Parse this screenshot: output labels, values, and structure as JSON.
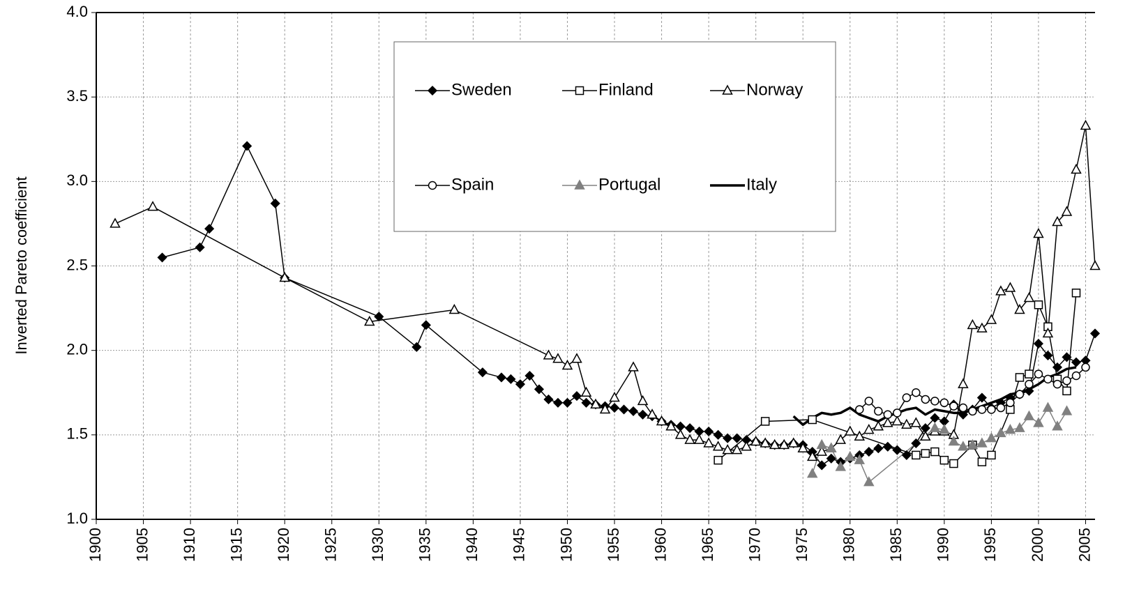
{
  "chart_data": {
    "type": "line",
    "y_label": "Inverted Pareto coefficient",
    "xlim": [
      1900,
      2006
    ],
    "xticks": [
      1900,
      1905,
      1910,
      1915,
      1920,
      1925,
      1930,
      1935,
      1940,
      1945,
      1950,
      1955,
      1960,
      1965,
      1970,
      1975,
      1980,
      1985,
      1990,
      1995,
      2000,
      2005
    ],
    "ylim": [
      1,
      4
    ],
    "yticks": [
      {
        "value": 1,
        "label": "1.0"
      },
      1.5,
      {
        "value": 2,
        "label": "2.0"
      },
      2.5,
      {
        "value": 3,
        "label": "3.0"
      },
      3.5,
      {
        "value": 4,
        "label": "4.0"
      }
    ],
    "grid": true,
    "series": [
      {
        "name": "Sweden",
        "color": "#000000",
        "marker": "diamond",
        "marker_fill": "#000000",
        "line_width": 1.5,
        "x": [
          1907,
          1911,
          1912,
          1916,
          1919,
          1920,
          1930,
          1934,
          1935,
          1941,
          1943,
          1944,
          1945,
          1946,
          1947,
          1948,
          1949,
          1950,
          1951,
          1952,
          1953,
          1954,
          1955,
          1956,
          1957,
          1958,
          1959,
          1960,
          1961,
          1962,
          1963,
          1964,
          1965,
          1966,
          1967,
          1968,
          1969,
          1970,
          1971,
          1972,
          1973,
          1974,
          1975,
          1976,
          1977,
          1978,
          1979,
          1980,
          1981,
          1982,
          1983,
          1984,
          1985,
          1986,
          1987,
          1988,
          1989,
          1990,
          1991,
          1992,
          1993,
          1994,
          1995,
          1996,
          1997,
          1998,
          1999,
          2000,
          2001,
          2002,
          2003,
          2004,
          2005,
          2006
        ],
        "values": [
          2.55,
          2.61,
          2.72,
          3.21,
          2.87,
          2.43,
          2.2,
          2.02,
          2.15,
          1.87,
          1.84,
          1.83,
          1.8,
          1.85,
          1.77,
          1.71,
          1.69,
          1.69,
          1.73,
          1.69,
          1.68,
          1.67,
          1.66,
          1.65,
          1.64,
          1.62,
          1.61,
          1.58,
          1.56,
          1.55,
          1.54,
          1.52,
          1.52,
          1.5,
          1.48,
          1.48,
          1.47,
          1.46,
          1.45,
          1.44,
          1.44,
          1.45,
          1.44,
          1.4,
          1.32,
          1.36,
          1.34,
          1.36,
          1.38,
          1.4,
          1.42,
          1.43,
          1.41,
          1.38,
          1.45,
          1.54,
          1.6,
          1.58,
          1.68,
          1.62,
          1.65,
          1.72,
          1.66,
          1.69,
          1.72,
          1.74,
          1.76,
          2.04,
          1.97,
          1.9,
          1.96,
          1.93,
          1.94,
          2.1
        ]
      },
      {
        "name": "Finland",
        "color": "#000000",
        "marker": "square",
        "marker_fill": "#ffffff",
        "line_width": 1.5,
        "x": [
          1966,
          1971,
          1976,
          1987,
          1988,
          1989,
          1990,
          1991,
          1993,
          1994,
          1995,
          1997,
          1998,
          1999,
          2000,
          2001,
          2002,
          2003,
          2004
        ],
        "values": [
          1.35,
          1.58,
          1.59,
          1.38,
          1.39,
          1.4,
          1.35,
          1.33,
          1.44,
          1.34,
          1.38,
          1.65,
          1.84,
          1.86,
          2.27,
          2.14,
          1.83,
          1.76,
          2.34
        ]
      },
      {
        "name": "Norway",
        "color": "#000000",
        "marker": "triangle",
        "marker_fill": "#ffffff",
        "line_width": 1.5,
        "x": [
          1902,
          1906,
          1920,
          1929,
          1938,
          1948,
          1949,
          1950,
          1951,
          1952,
          1953,
          1954,
          1955,
          1957,
          1958,
          1959,
          1960,
          1961,
          1962,
          1963,
          1964,
          1965,
          1966,
          1967,
          1968,
          1969,
          1970,
          1971,
          1972,
          1973,
          1974,
          1975,
          1976,
          1977,
          1978,
          1979,
          1980,
          1981,
          1982,
          1983,
          1984,
          1985,
          1986,
          1987,
          1988,
          1989,
          1990,
          1991,
          1992,
          1993,
          1994,
          1995,
          1996,
          1997,
          1998,
          1999,
          2000,
          2001,
          2002,
          2003,
          2004,
          2005,
          2006
        ],
        "values": [
          2.75,
          2.85,
          2.43,
          2.17,
          2.24,
          1.97,
          1.95,
          1.91,
          1.95,
          1.75,
          1.68,
          1.65,
          1.72,
          1.9,
          1.7,
          1.62,
          1.58,
          1.55,
          1.5,
          1.47,
          1.47,
          1.45,
          1.43,
          1.41,
          1.41,
          1.43,
          1.46,
          1.45,
          1.44,
          1.44,
          1.45,
          1.42,
          1.37,
          1.4,
          1.42,
          1.47,
          1.52,
          1.49,
          1.53,
          1.55,
          1.57,
          1.58,
          1.56,
          1.57,
          1.49,
          1.52,
          1.52,
          1.5,
          1.8,
          2.15,
          2.13,
          2.18,
          2.35,
          2.37,
          2.24,
          2.31,
          2.69,
          2.1,
          2.76,
          2.82,
          3.07,
          3.33,
          2.5
        ]
      },
      {
        "name": "Spain",
        "color": "#000000",
        "marker": "circle",
        "marker_fill": "#ffffff",
        "line_width": 1.5,
        "x": [
          1981,
          1982,
          1983,
          1984,
          1985,
          1986,
          1987,
          1988,
          1989,
          1990,
          1991,
          1992,
          1993,
          1994,
          1995,
          1996,
          1997,
          1998,
          1999,
          2000,
          2001,
          2002,
          2003,
          2004,
          2005
        ],
        "values": [
          1.65,
          1.7,
          1.64,
          1.62,
          1.63,
          1.72,
          1.75,
          1.71,
          1.7,
          1.69,
          1.67,
          1.66,
          1.64,
          1.65,
          1.65,
          1.66,
          1.69,
          1.74,
          1.8,
          1.86,
          1.83,
          1.8,
          1.82,
          1.85,
          1.9
        ]
      },
      {
        "name": "Portugal",
        "color": "#808080",
        "marker": "triangle",
        "marker_fill": "#808080",
        "line_width": 1.5,
        "x": [
          1976,
          1977,
          1978,
          1979,
          1980,
          1981,
          1982,
          1989,
          1990,
          1991,
          1992,
          1993,
          1994,
          1995,
          1996,
          1997,
          1998,
          1999,
          2000,
          2001,
          2002,
          2003
        ],
        "values": [
          1.27,
          1.44,
          1.42,
          1.31,
          1.37,
          1.35,
          1.22,
          1.54,
          1.53,
          1.46,
          1.43,
          1.44,
          1.45,
          1.48,
          1.51,
          1.53,
          1.54,
          1.61,
          1.57,
          1.66,
          1.55,
          1.64
        ]
      },
      {
        "name": "Italy",
        "color": "#000000",
        "marker": "none",
        "marker_fill": "#000000",
        "line_width": 3.5,
        "x": [
          1974,
          1975,
          1976,
          1977,
          1978,
          1979,
          1980,
          1981,
          1982,
          1983,
          1984,
          1985,
          1986,
          1987,
          1988,
          1989,
          1990,
          1991,
          1992,
          1993,
          1994,
          1995,
          1996,
          1997,
          1998,
          1999,
          2000,
          2001,
          2002,
          2003,
          2004
        ],
        "values": [
          1.61,
          1.56,
          1.6,
          1.63,
          1.62,
          1.63,
          1.66,
          1.62,
          1.6,
          1.58,
          1.61,
          1.63,
          1.65,
          1.66,
          1.62,
          1.65,
          1.64,
          1.63,
          1.63,
          1.65,
          1.67,
          1.69,
          1.71,
          1.74,
          1.75,
          1.77,
          1.8,
          1.84,
          1.86,
          1.89,
          1.9
        ]
      }
    ]
  }
}
